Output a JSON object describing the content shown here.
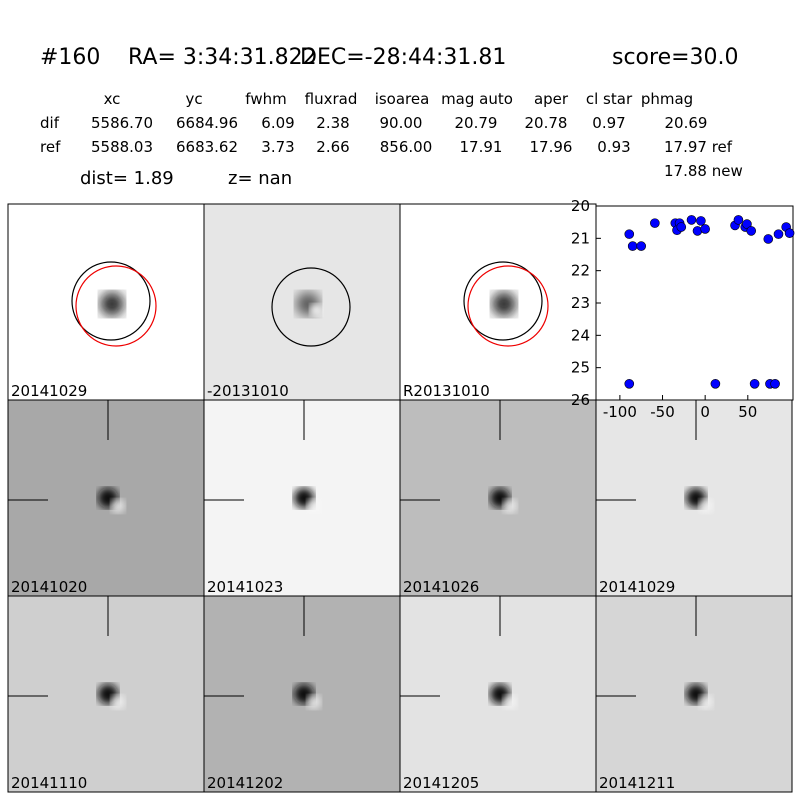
{
  "header": {
    "id": "#160",
    "ra": "RA= 3:34:31.822",
    "dec": "DEC=-28:44:31.81",
    "score": "score=30.0"
  },
  "table": {
    "columns": [
      "xc",
      "yc",
      "fwhm",
      "fluxrad",
      "isoarea",
      "mag auto",
      "aper",
      "cl star",
      "phmag"
    ],
    "rows": [
      [
        "dif",
        "5586.70",
        "6684.96",
        "6.09",
        "2.38",
        "90.00",
        "20.79",
        "20.78",
        "0.97",
        "20.69"
      ],
      [
        "ref",
        "5588.03",
        "6683.62",
        "3.73",
        "2.66",
        "856.00",
        "17.91",
        "17.96",
        "0.93",
        "17.97 ref"
      ]
    ],
    "extra": "17.88 new"
  },
  "dist": "dist=  1.89",
  "z": "z=   nan",
  "panels": [
    "20141029",
    "-20131010",
    "R20131010",
    "20141020",
    "20141023",
    "20141026",
    "20141029",
    "20141110",
    "20141202",
    "20141205",
    "20141211"
  ],
  "chart_data": {
    "type": "scatter",
    "color": "#0000ff",
    "x": [
      -89,
      -89,
      -85,
      -75,
      -59,
      -35,
      -30,
      -33,
      -28,
      -16,
      -9,
      -5,
      0,
      12,
      35,
      39,
      47,
      49,
      54,
      58,
      74,
      76,
      82,
      86,
      95,
      99
    ],
    "y": [
      25.5,
      20.87,
      21.24,
      21.24,
      20.53,
      20.53,
      20.53,
      20.75,
      20.65,
      20.43,
      20.77,
      20.46,
      20.71,
      25.5,
      20.6,
      20.43,
      20.65,
      20.56,
      20.77,
      25.5,
      21.02,
      25.5,
      25.5,
      20.87,
      20.65,
      20.84
    ],
    "xlim": [
      -128,
      103
    ],
    "ylim": [
      26,
      20
    ],
    "xticks": [
      -100,
      -50,
      0,
      50
    ],
    "yticks": [
      20,
      21,
      22,
      23,
      24,
      25,
      26
    ]
  }
}
